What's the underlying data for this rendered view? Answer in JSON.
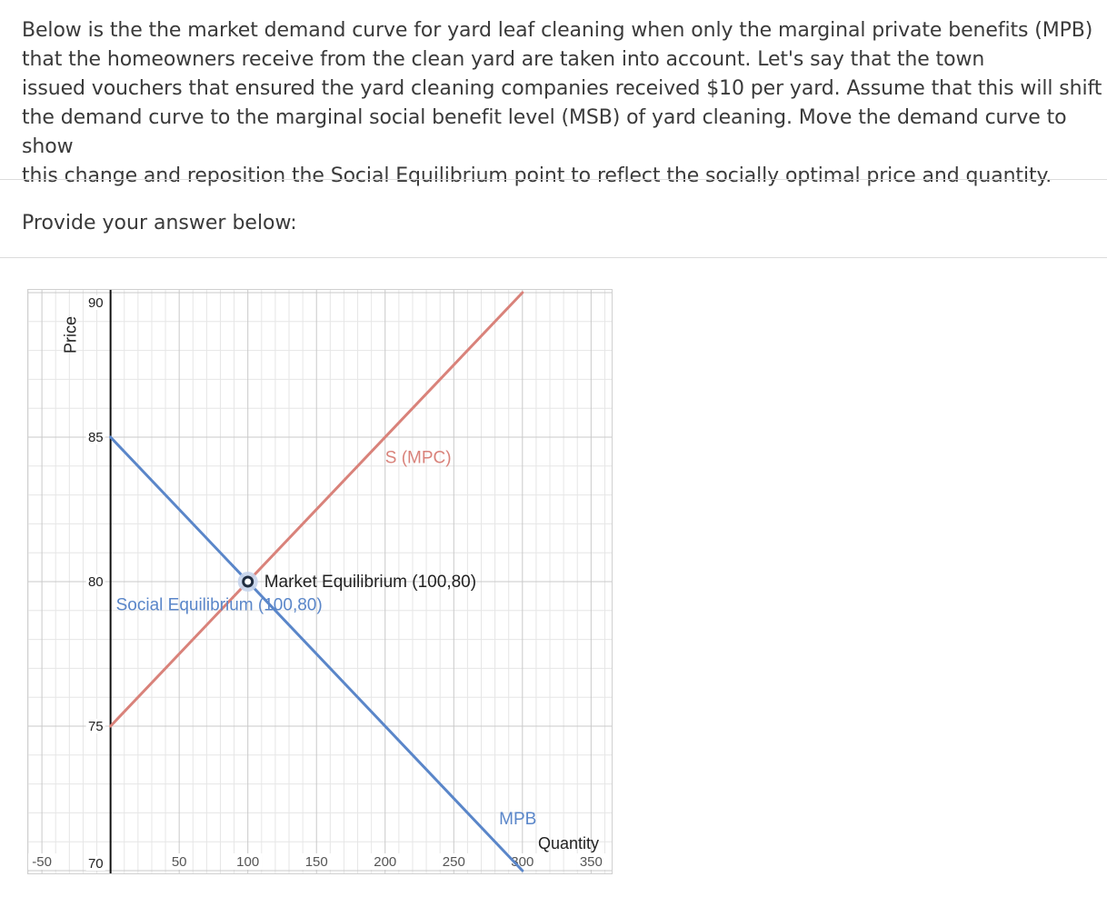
{
  "question": {
    "lines": [
      "Below is the the market demand curve for yard leaf cleaning when only the marginal private benefits (MPB)",
      "that the homeowners receive from the clean yard are taken into account. Let's say that the town",
      "issued vouchers that ensured the yard cleaning companies received $10 per yard. Assume that this will shift",
      "the demand curve to the marginal social benefit level (MSB) of yard cleaning. Move the demand curve to show",
      "this change and reposition the Social Equilibrium point to reflect the socially optimal price and quantity."
    ]
  },
  "answer_prompt": "Provide your answer below:",
  "chart_data": {
    "type": "line",
    "xlabel": "Quantity",
    "ylabel": "Price",
    "xlim": [
      -60,
      365
    ],
    "ylim": [
      70,
      90
    ],
    "x_ticks": [
      -50,
      0,
      50,
      100,
      150,
      200,
      250,
      300,
      350
    ],
    "x_tick_labels": [
      "-50",
      "",
      "50",
      "100",
      "150",
      "200",
      "250",
      "300",
      "350"
    ],
    "y_ticks": [
      70,
      75,
      80,
      85,
      90
    ],
    "y_tick_labels": [
      "70",
      "75",
      "80",
      "85",
      "90"
    ],
    "grid": true,
    "series": [
      {
        "name": "S (MPC)",
        "color": "#d9827a",
        "points": [
          [
            0,
            75
          ],
          [
            300,
            90
          ]
        ]
      },
      {
        "name": "MPB",
        "color": "#5a86c9",
        "points": [
          [
            0,
            85
          ],
          [
            300,
            70
          ]
        ]
      }
    ],
    "points": [
      {
        "label": "Market Equilibrium (100,80)",
        "x": 100,
        "y": 80,
        "color": "#1f2d40"
      },
      {
        "label": "Social Equilibrium (100,80)",
        "x": 100,
        "y": 80,
        "color": "#5a86c9"
      }
    ],
    "colors": {
      "axis": "#111111",
      "grid_major": "#c9c9c9",
      "grid_minor": "#e6e6e6",
      "label_blue": "#5a86c9",
      "label_red": "#d9827a"
    }
  }
}
